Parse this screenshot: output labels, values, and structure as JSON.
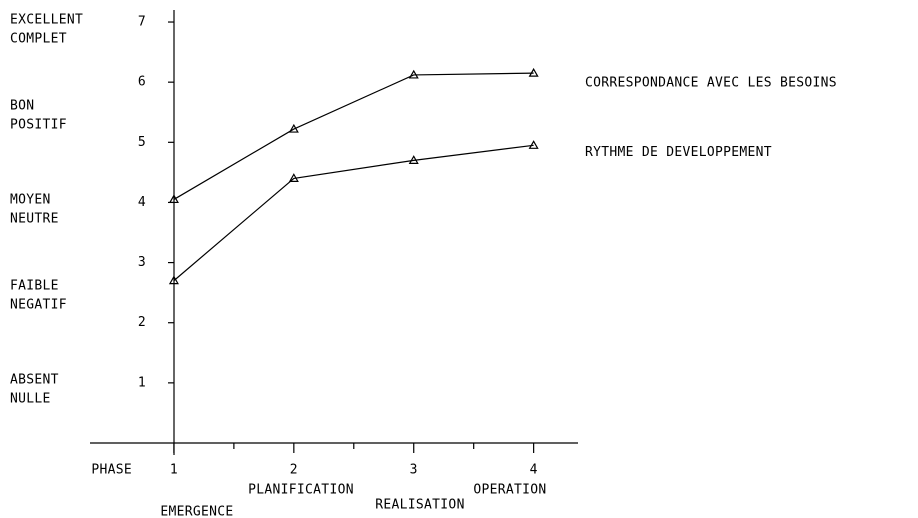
{
  "chart_data": {
    "type": "line",
    "x_label": "PHASE",
    "x": [
      1,
      2,
      3,
      4
    ],
    "phase_names": [
      "EMERGENCE",
      "PLANIFICATION",
      "REALISATION",
      "OPERATION"
    ],
    "series": [
      {
        "name": "CORRESPONDANCE AVEC LES BESOINS",
        "color": "#000000",
        "values": [
          4.05,
          5.22,
          6.12,
          6.15
        ]
      },
      {
        "name": "RYTHME DE DEVELOPPEMENT",
        "color": "#000000",
        "values": [
          2.7,
          4.4,
          4.7,
          4.95
        ]
      }
    ],
    "level_labels": [
      [
        "EXCELLENT",
        "COMPLET"
      ],
      [
        "BON",
        "POSITIF"
      ],
      [
        "MOYEN",
        "NEUTRE"
      ],
      [
        "FAIBLE",
        "NEGATIF"
      ],
      [
        "ABSENT",
        "NULLE"
      ]
    ],
    "xlim": [
      0.3,
      4.37
    ],
    "xticks": [
      1,
      2,
      3,
      4
    ],
    "xminorticks": [
      1.5,
      2.5,
      3.5
    ],
    "ylim": [
      0,
      7.2
    ],
    "yticks": [
      1,
      2,
      3,
      4,
      5,
      6,
      7
    ],
    "grid": false
  }
}
